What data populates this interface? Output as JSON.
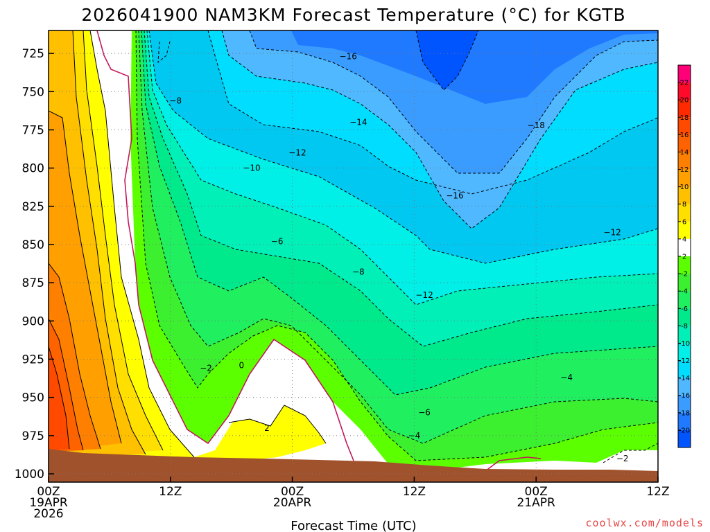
{
  "chart_data": {
    "type": "heatmap",
    "title": "2026041900 NAM3KM Forecast Temperature (°C) for KGTB",
    "xlabel": "Forecast Time (UTC)",
    "ylabel": "",
    "x_unit": "hours since 2026-04-19 00Z",
    "xlim": [
      0,
      60
    ],
    "ylim": [
      1000,
      710
    ],
    "x_ticks": [
      {
        "value": 0,
        "line1": "00Z",
        "line2": "19APR",
        "line3": "2026"
      },
      {
        "value": 12,
        "line1": "12Z",
        "line2": "",
        "line3": ""
      },
      {
        "value": 24,
        "line1": "00Z",
        "line2": "20APR",
        "line3": ""
      },
      {
        "value": 36,
        "line1": "12Z",
        "line2": "",
        "line3": ""
      },
      {
        "value": 48,
        "line1": "00Z",
        "line2": "21APR",
        "line3": ""
      },
      {
        "value": 60,
        "line1": "12Z",
        "line2": "",
        "line3": ""
      }
    ],
    "y_ticks": [
      725,
      750,
      775,
      800,
      825,
      850,
      875,
      900,
      925,
      950,
      975,
      1000
    ],
    "grid": true,
    "colorbar": {
      "levels": [
        -22,
        -20,
        -18,
        -16,
        -14,
        -12,
        -10,
        -8,
        -6,
        -4,
        -2,
        2,
        4,
        6,
        8,
        10,
        12,
        14,
        16,
        18,
        20,
        22,
        24
      ],
      "colors": [
        "#0055ff",
        "#1f7aff",
        "#3b9cff",
        "#4fb8ff",
        "#00ddff",
        "#00f0e8",
        "#00f0b8",
        "#00ea8c",
        "#20f060",
        "#3cf030",
        "#5cff00",
        "#ffffff",
        "#ffff00",
        "#ffdf00",
        "#ffc000",
        "#ffa000",
        "#ff8000",
        "#ff6300",
        "#ff4a00",
        "#ff2a00",
        "#ff0a2a",
        "#ff0078"
      ],
      "tick_labels": [
        "22",
        "20",
        "18",
        "16",
        "14",
        "12",
        "10",
        "8",
        "6",
        "4",
        "2",
        "-2",
        "-4",
        "-6",
        "-8",
        "-10",
        "-12",
        "-14",
        "-16",
        "-18",
        "-20"
      ],
      "placement": "right"
    },
    "contour_labels": [
      {
        "text": "−8",
        "x": 12.5,
        "y": 756,
        "pen": "dashed"
      },
      {
        "text": "−16",
        "x": 29.5,
        "y": 727,
        "pen": "dashed"
      },
      {
        "text": "−14",
        "x": 30.5,
        "y": 770,
        "pen": "dashed"
      },
      {
        "text": "−12",
        "x": 24.5,
        "y": 790,
        "pen": "dashed"
      },
      {
        "text": "−10",
        "x": 20,
        "y": 800,
        "pen": "dashed"
      },
      {
        "text": "−18",
        "x": 48,
        "y": 772,
        "pen": "dashed"
      },
      {
        "text": "−16",
        "x": 40,
        "y": 818,
        "pen": "dashed"
      },
      {
        "text": "−12",
        "x": 55.5,
        "y": 842,
        "pen": "dashed"
      },
      {
        "text": "−6",
        "x": 22.5,
        "y": 848,
        "pen": "dashed"
      },
      {
        "text": "−8",
        "x": 30.5,
        "y": 868,
        "pen": "dashed"
      },
      {
        "text": "−12",
        "x": 37,
        "y": 883,
        "pen": "dashed"
      },
      {
        "text": "−2",
        "x": 15.5,
        "y": 931,
        "pen": "dashed"
      },
      {
        "text": "0",
        "x": 19,
        "y": 929,
        "pen": "magenta"
      },
      {
        "text": "2",
        "x": 21.5,
        "y": 970,
        "pen": "solid"
      },
      {
        "text": "−6",
        "x": 37,
        "y": 960,
        "pen": "dashed"
      },
      {
        "text": "−4",
        "x": 36,
        "y": 975,
        "pen": "dashed"
      },
      {
        "text": "−4",
        "x": 51,
        "y": 937,
        "pen": "dashed"
      },
      {
        "text": "−2",
        "x": 56.5,
        "y": 990,
        "pen": "dashed"
      }
    ],
    "surface": {
      "label": "ground",
      "approx_pressure_by_hour": [
        [
          0,
          983
        ],
        [
          12,
          990
        ],
        [
          24,
          991
        ],
        [
          36,
          994
        ],
        [
          48,
          996
        ],
        [
          60,
          997
        ]
      ]
    }
  },
  "footer": {
    "credit": "coolwx.com/models"
  },
  "colors": {
    "ground": "#a0522d",
    "frame": "#000000",
    "freezing_line": "#c2185b"
  }
}
